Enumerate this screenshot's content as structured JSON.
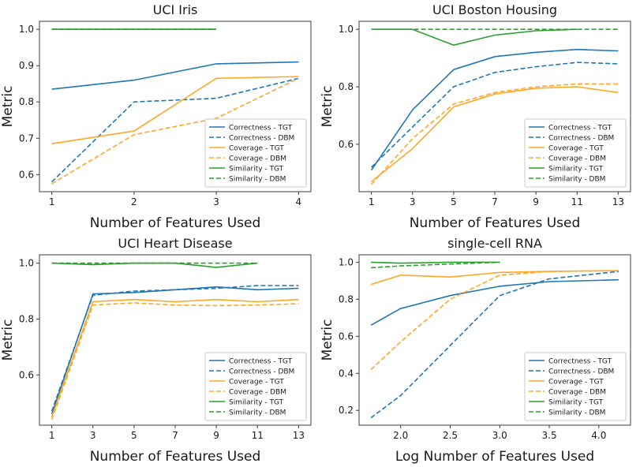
{
  "figure": {
    "background": "#ffffff"
  },
  "colors": {
    "correctness": "#1f77b4",
    "coverage": "#ffa726",
    "similarity": "#2ca02c"
  },
  "chart_data": [
    {
      "type": "line",
      "title": "UCI Iris",
      "xlabel": "Number of Features Used",
      "ylabel": "Metric",
      "xlim": [
        0.85,
        4.15
      ],
      "ylim": [
        0.553,
        1.022
      ],
      "xticks": [
        1,
        2,
        3,
        4
      ],
      "xtick_labels": [
        "1",
        "2",
        "3",
        "4"
      ],
      "yticks": [
        0.6,
        0.7,
        0.8,
        0.9,
        1.0
      ],
      "ytick_labels": [
        "0.6",
        "0.7",
        "0.8",
        "0.9",
        "1.0"
      ],
      "grid": false,
      "legend_position": "lower right",
      "series": [
        {
          "name": "Correctness - TGT",
          "color": "#1f77b4",
          "style": "solid",
          "x": [
            1,
            2,
            3,
            4
          ],
          "y": [
            0.835,
            0.86,
            0.905,
            0.91
          ]
        },
        {
          "name": "Correctness - DBM",
          "color": "#1f77b4",
          "style": "dashed",
          "x": [
            1,
            2,
            3,
            4
          ],
          "y": [
            0.58,
            0.8,
            0.81,
            0.865
          ]
        },
        {
          "name": "Coverage - TGT",
          "color": "#ffa726",
          "style": "solid",
          "x": [
            1,
            2,
            3,
            4
          ],
          "y": [
            0.685,
            0.72,
            0.865,
            0.87
          ]
        },
        {
          "name": "Coverage - DBM",
          "color": "#ffa726",
          "style": "dashed",
          "x": [
            1,
            2,
            3,
            4
          ],
          "y": [
            0.575,
            0.71,
            0.755,
            0.865
          ]
        },
        {
          "name": "Similarity - TGT",
          "color": "#2ca02c",
          "style": "solid",
          "x": [
            1,
            2,
            3
          ],
          "y": [
            1.0,
            1.0,
            1.0
          ]
        },
        {
          "name": "Similarity - DBM",
          "color": "#2ca02c",
          "style": "dashed",
          "x": [
            1,
            2,
            3
          ],
          "y": [
            1.0,
            1.0,
            1.0
          ]
        }
      ]
    },
    {
      "type": "line",
      "title": "UCI Boston Housing",
      "xlabel": "Number of Features Used",
      "ylabel": "Metric",
      "xlim": [
        0.4,
        13.6
      ],
      "ylim": [
        0.435,
        1.028
      ],
      "xticks": [
        1,
        3,
        5,
        7,
        9,
        11,
        13
      ],
      "xtick_labels": [
        "1",
        "3",
        "5",
        "7",
        "9",
        "11",
        "13"
      ],
      "yticks": [
        0.6,
        0.8,
        1.0
      ],
      "ytick_labels": [
        "0.6",
        "0.8",
        "1.0"
      ],
      "grid": false,
      "legend_position": "lower right",
      "series": [
        {
          "name": "Correctness - TGT",
          "color": "#1f77b4",
          "style": "solid",
          "x": [
            1,
            3,
            5,
            7,
            9,
            11,
            13
          ],
          "y": [
            0.51,
            0.72,
            0.86,
            0.905,
            0.92,
            0.93,
            0.925
          ]
        },
        {
          "name": "Correctness - DBM",
          "color": "#1f77b4",
          "style": "dashed",
          "x": [
            1,
            3,
            5,
            7,
            9,
            11,
            13
          ],
          "y": [
            0.52,
            0.66,
            0.8,
            0.85,
            0.87,
            0.885,
            0.88
          ]
        },
        {
          "name": "Coverage - TGT",
          "color": "#ffa726",
          "style": "solid",
          "x": [
            1,
            3,
            5,
            7,
            9,
            11,
            13
          ],
          "y": [
            0.47,
            0.585,
            0.73,
            0.775,
            0.795,
            0.8,
            0.78
          ]
        },
        {
          "name": "Coverage - DBM",
          "color": "#ffa726",
          "style": "dashed",
          "x": [
            1,
            3,
            5,
            7,
            9,
            11,
            13
          ],
          "y": [
            0.46,
            0.62,
            0.74,
            0.78,
            0.8,
            0.81,
            0.81
          ]
        },
        {
          "name": "Similarity - TGT",
          "color": "#2ca02c",
          "style": "solid",
          "x": [
            1,
            3,
            5,
            7,
            9,
            11
          ],
          "y": [
            1.0,
            1.0,
            0.945,
            0.98,
            0.995,
            1.0
          ]
        },
        {
          "name": "Similarity - DBM",
          "color": "#2ca02c",
          "style": "dashed",
          "x": [
            1,
            3,
            5,
            7,
            9,
            11,
            13
          ],
          "y": [
            1.0,
            1.0,
            1.0,
            1.0,
            1.0,
            1.0,
            1.0
          ]
        }
      ]
    },
    {
      "type": "line",
      "title": "UCI Heart Disease",
      "xlabel": "Number of Features Used",
      "ylabel": "Metric",
      "xlim": [
        0.4,
        13.6
      ],
      "ylim": [
        0.42,
        1.03
      ],
      "xticks": [
        1,
        3,
        5,
        7,
        9,
        11,
        13
      ],
      "xtick_labels": [
        "1",
        "3",
        "5",
        "7",
        "9",
        "11",
        "13"
      ],
      "yticks": [
        0.6,
        0.8,
        1.0
      ],
      "ytick_labels": [
        "0.6",
        "0.8",
        "1.0"
      ],
      "grid": false,
      "legend_position": "lower right",
      "series": [
        {
          "name": "Correctness - TGT",
          "color": "#1f77b4",
          "style": "solid",
          "x": [
            1,
            3,
            5,
            7,
            9,
            11,
            13
          ],
          "y": [
            0.46,
            0.89,
            0.895,
            0.905,
            0.915,
            0.905,
            0.91
          ]
        },
        {
          "name": "Correctness - DBM",
          "color": "#1f77b4",
          "style": "dashed",
          "x": [
            1,
            3,
            5,
            7,
            9,
            11,
            13
          ],
          "y": [
            0.47,
            0.885,
            0.9,
            0.905,
            0.91,
            0.92,
            0.92
          ]
        },
        {
          "name": "Coverage - TGT",
          "color": "#ffa726",
          "style": "solid",
          "x": [
            1,
            3,
            5,
            7,
            9,
            11,
            13
          ],
          "y": [
            0.45,
            0.862,
            0.87,
            0.862,
            0.87,
            0.862,
            0.87
          ]
        },
        {
          "name": "Coverage - DBM",
          "color": "#ffa726",
          "style": "dashed",
          "x": [
            1,
            3,
            5,
            7,
            9,
            11,
            13
          ],
          "y": [
            0.44,
            0.85,
            0.858,
            0.85,
            0.848,
            0.85,
            0.855
          ]
        },
        {
          "name": "Similarity - TGT",
          "color": "#2ca02c",
          "style": "solid",
          "x": [
            1,
            3,
            5,
            7,
            9,
            11
          ],
          "y": [
            1.0,
            0.995,
            1.0,
            1.0,
            0.985,
            1.0
          ]
        },
        {
          "name": "Similarity - DBM",
          "color": "#2ca02c",
          "style": "dashed",
          "x": [
            1,
            3,
            5,
            7,
            9,
            11
          ],
          "y": [
            1.0,
            1.0,
            1.0,
            1.0,
            1.0,
            1.0
          ]
        }
      ]
    },
    {
      "type": "line",
      "title": "single-cell RNA",
      "xlabel": "Log Number of Features Used",
      "ylabel": "Metric",
      "xlim": [
        1.58,
        4.32
      ],
      "ylim": [
        0.12,
        1.04
      ],
      "xticks": [
        2.0,
        2.5,
        3.0,
        3.5,
        4.0
      ],
      "xtick_labels": [
        "2.0",
        "2.5",
        "3.0",
        "3.5",
        "4.0"
      ],
      "yticks": [
        0.2,
        0.4,
        0.6,
        0.8,
        1.0
      ],
      "ytick_labels": [
        "0.2",
        "0.4",
        "0.6",
        "0.8",
        "1.0"
      ],
      "grid": false,
      "legend_position": "lower right",
      "series": [
        {
          "name": "Correctness - TGT",
          "color": "#1f77b4",
          "style": "solid",
          "x": [
            1.7,
            2.0,
            2.5,
            3.0,
            3.5,
            4.2
          ],
          "y": [
            0.66,
            0.75,
            0.82,
            0.87,
            0.895,
            0.905
          ]
        },
        {
          "name": "Correctness - DBM",
          "color": "#1f77b4",
          "style": "dashed",
          "x": [
            1.7,
            2.0,
            2.5,
            3.0,
            3.5,
            4.2
          ],
          "y": [
            0.16,
            0.28,
            0.55,
            0.82,
            0.91,
            0.95
          ]
        },
        {
          "name": "Coverage - TGT",
          "color": "#ffa726",
          "style": "solid",
          "x": [
            1.7,
            2.0,
            2.5,
            3.0,
            3.5,
            4.2
          ],
          "y": [
            0.88,
            0.93,
            0.92,
            0.945,
            0.95,
            0.955
          ]
        },
        {
          "name": "Coverage - DBM",
          "color": "#ffa726",
          "style": "dashed",
          "x": [
            1.7,
            2.0,
            2.5,
            3.0,
            3.5,
            4.2
          ],
          "y": [
            0.42,
            0.57,
            0.8,
            0.93,
            0.95,
            0.955
          ]
        },
        {
          "name": "Similarity - TGT",
          "color": "#2ca02c",
          "style": "solid",
          "x": [
            1.7,
            2.0,
            2.5,
            3.0
          ],
          "y": [
            1.0,
            0.995,
            1.0,
            1.0
          ]
        },
        {
          "name": "Similarity - DBM",
          "color": "#2ca02c",
          "style": "dashed",
          "x": [
            1.7,
            2.0,
            2.5,
            3.0
          ],
          "y": [
            0.97,
            0.98,
            0.99,
            1.0
          ]
        }
      ]
    }
  ]
}
